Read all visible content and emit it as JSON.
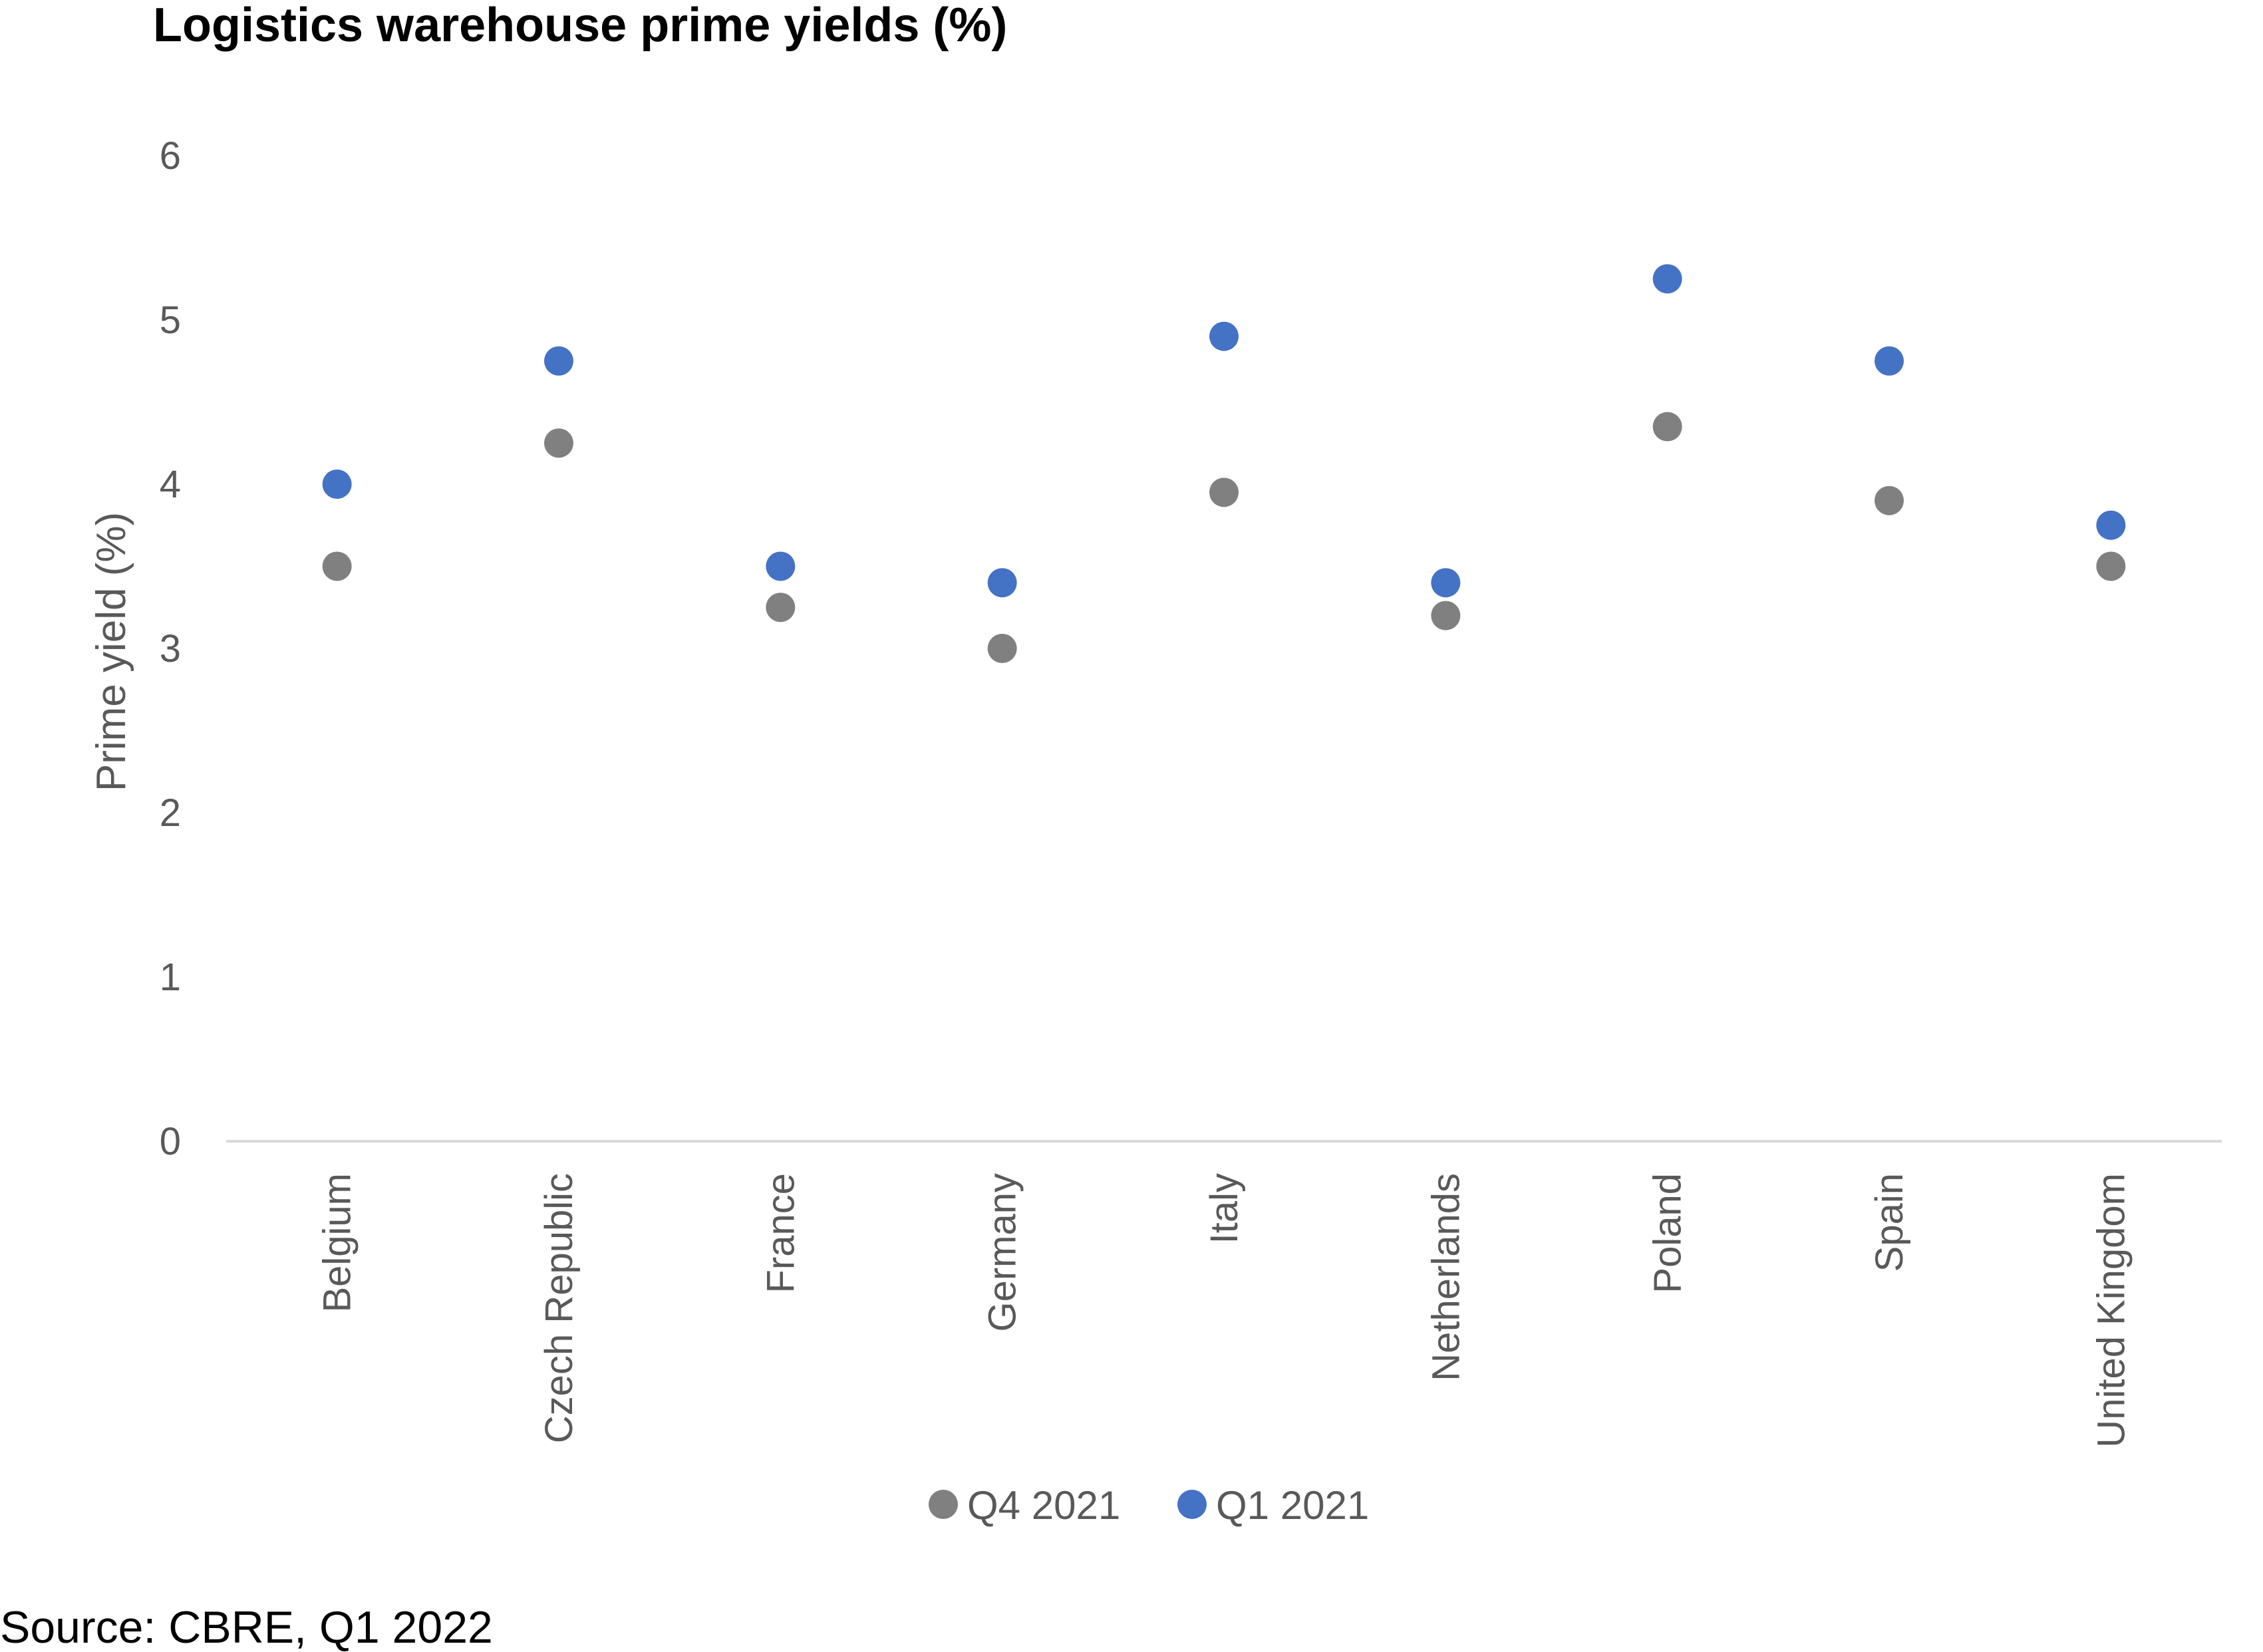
{
  "chart_data": {
    "type": "scatter",
    "title": "Logistics warehouse prime yields (%)",
    "ylabel": "Prime yield (%)",
    "xlabel": "",
    "source": "Source: CBRE, Q1 2022",
    "categories": [
      "Belgium",
      "Czech Republic",
      "France",
      "Germany",
      "Italy",
      "Netherlands",
      "Poland",
      "Spain",
      "United Kingdom"
    ],
    "ylim": [
      0,
      6
    ],
    "yticks": [
      "0",
      "1",
      "2",
      "3",
      "4",
      "5",
      "6"
    ],
    "grid": false,
    "legend": "bottom",
    "series": [
      {
        "name": "Q4 2021",
        "color": "#808080",
        "values": [
          3.5,
          4.25,
          3.25,
          3.0,
          3.95,
          3.2,
          4.35,
          3.9,
          3.5
        ]
      },
      {
        "name": "Q1 2021",
        "color": "#4472C4",
        "values": [
          4.0,
          4.75,
          3.5,
          3.4,
          4.9,
          3.4,
          5.25,
          4.75,
          3.75
        ]
      }
    ]
  }
}
